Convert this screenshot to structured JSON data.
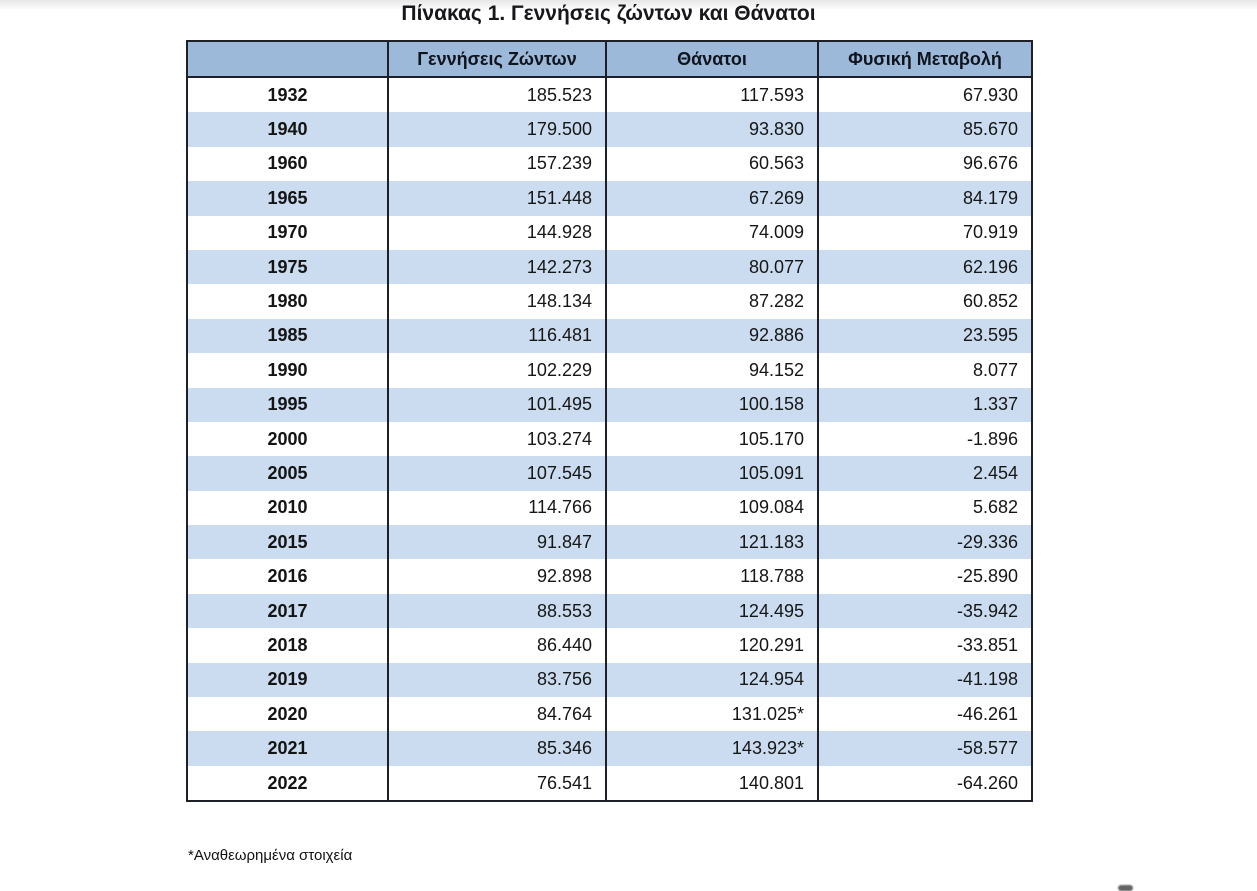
{
  "title": "Πίνακας 1. Γεννήσεις ζώντων και Θάνατοι",
  "table": {
    "columns": [
      "",
      "Γεννήσεις Ζώντων",
      "Θάνατοι",
      "Φυσική Μεταβολή"
    ],
    "rows": [
      {
        "year": "1932",
        "births": "185.523",
        "deaths": "117.593",
        "change": "67.930"
      },
      {
        "year": "1940",
        "births": "179.500",
        "deaths": "93.830",
        "change": "85.670"
      },
      {
        "year": "1960",
        "births": "157.239",
        "deaths": "60.563",
        "change": "96.676"
      },
      {
        "year": "1965",
        "births": "151.448",
        "deaths": "67.269",
        "change": "84.179"
      },
      {
        "year": "1970",
        "births": "144.928",
        "deaths": "74.009",
        "change": "70.919"
      },
      {
        "year": "1975",
        "births": "142.273",
        "deaths": "80.077",
        "change": "62.196"
      },
      {
        "year": "1980",
        "births": "148.134",
        "deaths": "87.282",
        "change": "60.852"
      },
      {
        "year": "1985",
        "births": "116.481",
        "deaths": "92.886",
        "change": "23.595"
      },
      {
        "year": "1990",
        "births": "102.229",
        "deaths": "94.152",
        "change": "8.077"
      },
      {
        "year": "1995",
        "births": "101.495",
        "deaths": "100.158",
        "change": "1.337"
      },
      {
        "year": "2000",
        "births": "103.274",
        "deaths": "105.170",
        "change": "-1.896"
      },
      {
        "year": "2005",
        "births": "107.545",
        "deaths": "105.091",
        "change": "2.454"
      },
      {
        "year": "2010",
        "births": "114.766",
        "deaths": "109.084",
        "change": "5.682"
      },
      {
        "year": "2015",
        "births": "91.847",
        "deaths": "121.183",
        "change": "-29.336"
      },
      {
        "year": "2016",
        "births": "92.898",
        "deaths": "118.788",
        "change": "-25.890"
      },
      {
        "year": "2017",
        "births": "88.553",
        "deaths": "124.495",
        "change": "-35.942"
      },
      {
        "year": "2018",
        "births": "86.440",
        "deaths": "120.291",
        "change": "-33.851"
      },
      {
        "year": "2019",
        "births": "83.756",
        "deaths": "124.954",
        "change": "-41.198"
      },
      {
        "year": "2020",
        "births": "84.764",
        "deaths": "131.025*",
        "change": "-46.261"
      },
      {
        "year": "2021",
        "births": "85.346",
        "deaths": "143.923*",
        "change": "-58.577"
      },
      {
        "year": "2022",
        "births": "76.541",
        "deaths": "140.801",
        "change": "-64.260"
      }
    ]
  },
  "footnote": "*Αναθεωρημένα στοιχεία",
  "colors": {
    "header_bg": "#9db9da",
    "row_alt_bg": "#cbdcf0",
    "border": "#1d2026"
  }
}
